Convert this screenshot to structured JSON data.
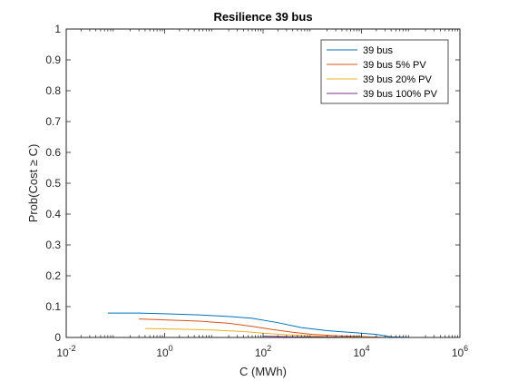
{
  "chart_data": {
    "type": "line",
    "title": "Resilience 39 bus",
    "xlabel": "C (MWh)",
    "ylabel": "Prob(Cost ≥ C)",
    "xscale": "log",
    "xlim": [
      0.01,
      1000000
    ],
    "ylim": [
      0,
      1
    ],
    "x_ticks": [
      {
        "value": 0.01,
        "base": "10",
        "exp": "-2"
      },
      {
        "value": 1,
        "base": "10",
        "exp": "0"
      },
      {
        "value": 100,
        "base": "10",
        "exp": "2"
      },
      {
        "value": 10000,
        "base": "10",
        "exp": "4"
      },
      {
        "value": 1000000,
        "base": "10",
        "exp": "6"
      }
    ],
    "y_ticks": [
      {
        "value": 0,
        "label": "0"
      },
      {
        "value": 0.1,
        "label": "0.1"
      },
      {
        "value": 0.2,
        "label": "0.2"
      },
      {
        "value": 0.3,
        "label": "0.3"
      },
      {
        "value": 0.4,
        "label": "0.4"
      },
      {
        "value": 0.5,
        "label": "0.5"
      },
      {
        "value": 0.6,
        "label": "0.6"
      },
      {
        "value": 0.7,
        "label": "0.7"
      },
      {
        "value": 0.8,
        "label": "0.8"
      },
      {
        "value": 0.9,
        "label": "0.9"
      },
      {
        "value": 1,
        "label": "1"
      }
    ],
    "grid": false,
    "legend_position": "top-right",
    "series": [
      {
        "name": "39 bus",
        "color": "#0072BD",
        "points": [
          [
            0.07,
            0.079
          ],
          [
            0.3,
            0.079
          ],
          [
            1,
            0.077
          ],
          [
            5,
            0.073
          ],
          [
            20,
            0.068
          ],
          [
            60,
            0.062
          ],
          [
            200,
            0.048
          ],
          [
            600,
            0.032
          ],
          [
            2000,
            0.022
          ],
          [
            8000,
            0.015
          ],
          [
            20000,
            0.01
          ],
          [
            40000,
            0.002
          ],
          [
            100000,
            0
          ]
        ]
      },
      {
        "name": "39 bus 5% PV",
        "color": "#D95319",
        "points": [
          [
            0.3,
            0.06
          ],
          [
            1,
            0.057
          ],
          [
            5,
            0.053
          ],
          [
            20,
            0.046
          ],
          [
            60,
            0.036
          ],
          [
            150,
            0.026
          ],
          [
            400,
            0.017
          ],
          [
            1000,
            0.01
          ],
          [
            3000,
            0.006
          ],
          [
            10000,
            0.003
          ],
          [
            20000,
            0.001
          ],
          [
            30000,
            0
          ]
        ]
      },
      {
        "name": "39 bus 20% PV",
        "color": "#EDB120",
        "points": [
          [
            0.4,
            0.029
          ],
          [
            2,
            0.027
          ],
          [
            10,
            0.024
          ],
          [
            40,
            0.019
          ],
          [
            100,
            0.014
          ],
          [
            300,
            0.009
          ],
          [
            1000,
            0.005
          ],
          [
            3000,
            0.002
          ],
          [
            10000,
            0.001
          ],
          [
            20000,
            0
          ]
        ]
      },
      {
        "name": "39 bus 100% PV",
        "color": "#7E2F8E",
        "points": [
          [
            100,
            0.004
          ],
          [
            500,
            0.002
          ],
          [
            3000,
            0.001
          ],
          [
            10000,
            0
          ]
        ]
      }
    ]
  }
}
